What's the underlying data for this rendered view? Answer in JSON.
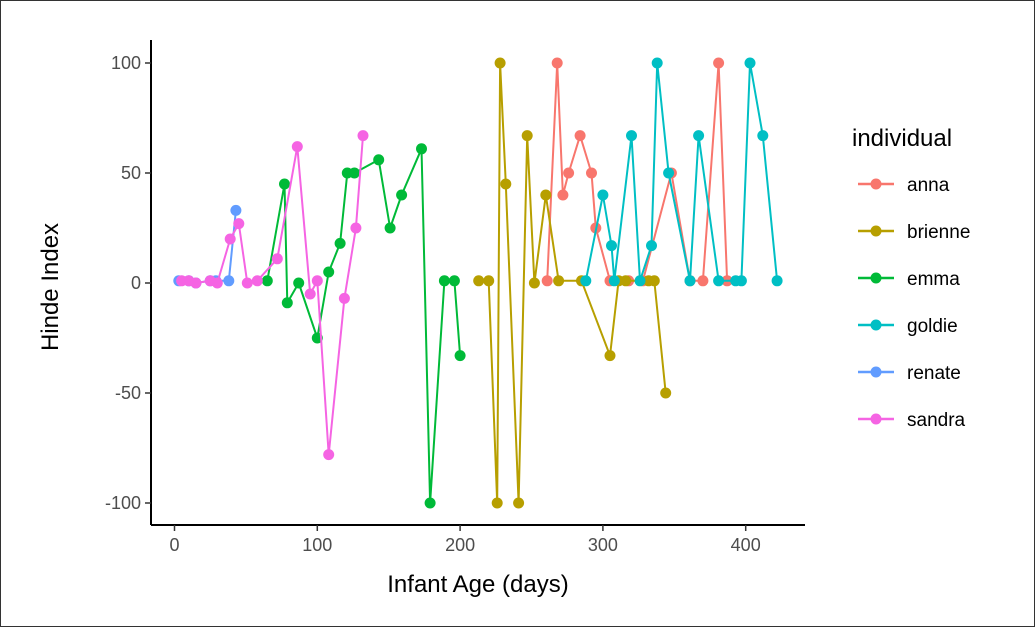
{
  "chart_data": {
    "type": "line",
    "title": "",
    "xlabel": "Infant Age (days)",
    "ylabel": "Hinde Index",
    "xlim": [
      -10,
      445
    ],
    "ylim": [
      -110,
      110
    ],
    "xticks": [
      0,
      100,
      200,
      300,
      400
    ],
    "yticks": [
      -100,
      -50,
      0,
      50,
      100
    ],
    "grid": false,
    "legend": {
      "title": "individual",
      "position": "right"
    },
    "series": [
      {
        "name": "anna",
        "color": "#F8766D",
        "x": [
          261,
          268,
          272,
          276,
          284,
          292,
          295,
          305,
          318,
          328,
          348,
          361,
          370,
          381,
          387
        ],
        "y": [
          1,
          100,
          40,
          50,
          67,
          50,
          25,
          1,
          1,
          1,
          50,
          1,
          1,
          100,
          1
        ]
      },
      {
        "name": "brienne",
        "color": "#B79F00",
        "x": [
          213,
          220,
          226,
          228,
          232,
          241,
          247,
          252,
          260,
          269,
          285,
          305,
          311,
          316,
          332,
          336,
          344
        ],
        "y": [
          1,
          1,
          -100,
          100,
          45,
          -100,
          67,
          0,
          40,
          1,
          1,
          -33,
          1,
          1,
          1,
          1,
          -50
        ]
      },
      {
        "name": "emma",
        "color": "#00BA38",
        "x": [
          65,
          77,
          79,
          87,
          100,
          108,
          116,
          121,
          126,
          143,
          151,
          159,
          173,
          179,
          189,
          196,
          200
        ],
        "y": [
          1,
          45,
          -9,
          0,
          -25,
          5,
          18,
          50,
          50,
          56,
          25,
          40,
          61,
          -100,
          1,
          1,
          -33
        ]
      },
      {
        "name": "goldie",
        "color": "#00BFC4",
        "x": [
          288,
          300,
          306,
          308,
          320,
          326,
          334,
          338,
          346,
          361,
          367,
          381,
          393,
          397,
          403,
          412,
          422
        ],
        "y": [
          1,
          40,
          17,
          1,
          67,
          1,
          17,
          100,
          50,
          1,
          67,
          1,
          1,
          1,
          100,
          67,
          1
        ]
      },
      {
        "name": "renate",
        "color": "#619CFF",
        "x": [
          3,
          10,
          15,
          25,
          29,
          38,
          43
        ],
        "y": [
          1,
          1,
          0,
          1,
          1,
          1,
          33
        ]
      },
      {
        "name": "sandra",
        "color": "#F564E3",
        "x": [
          5,
          10,
          15,
          25,
          30,
          39,
          45,
          51,
          58,
          72,
          86,
          95,
          100,
          108,
          119,
          127,
          132
        ],
        "y": [
          1,
          1,
          0,
          1,
          0,
          20,
          27,
          0,
          1,
          11,
          62,
          -5,
          1,
          -78,
          -7,
          25,
          67
        ]
      }
    ]
  }
}
